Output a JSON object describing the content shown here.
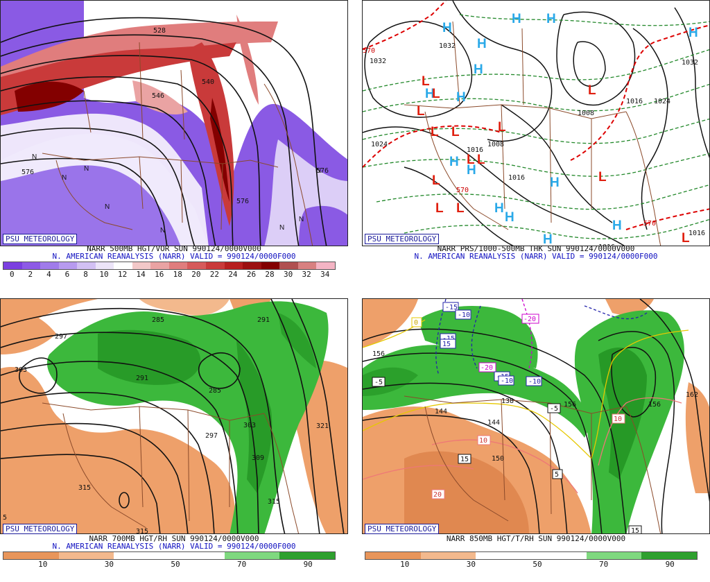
{
  "brand": "PSU METEOROLOGY",
  "panels": [
    {
      "line1": "NARR 500MB HGT/VOR SUN 990124/0000V000",
      "line2": "N. AMERICAN REANALYSIS (NARR) VALID = 990124/0000F000",
      "colorbar": {
        "ticks": [
          "0",
          "2",
          "4",
          "6",
          "8",
          "10",
          "12",
          "14",
          "16",
          "18",
          "20",
          "22",
          "24",
          "26",
          "28",
          "30",
          "32",
          "34"
        ],
        "colors": [
          "#7b3fe0",
          "#8d5ae6",
          "#a07bea",
          "#b79aef",
          "#d2c0f3",
          "#ece4f8",
          "#ffffff",
          "#f2c8c8",
          "#eaa3a3",
          "#e07d7d",
          "#d65a5a",
          "#c93a3a",
          "#b71f1f",
          "#9c1010",
          "#830000",
          "#b05050",
          "#d88080",
          "#f4b4c4"
        ]
      },
      "contour_labels": [
        "528",
        "546",
        "576",
        "576",
        "576",
        "540",
        "549",
        "570"
      ]
    },
    {
      "line1": "NARR PRS/1000-500MB THK SUN 990124/0000V000",
      "line2": "N. AMERICAN REANALYSIS (NARR) VALID = 990124/0000F000",
      "high_symbol": "H",
      "low_symbol": "L",
      "contour_labels": [
        "1032",
        "1024",
        "1032",
        "1008",
        "1016",
        "1024",
        "1016",
        "1008",
        "1016",
        "1032",
        "1016",
        "1016",
        "570",
        "570",
        "570"
      ]
    },
    {
      "line1": "NARR 700MB HGT/RH SUN 990124/0000V000",
      "line2": "N. AMERICAN REANALYSIS (NARR) VALID = 990124/0000F000",
      "colorbar": {
        "ticks": [
          "10",
          "30",
          "50",
          "70",
          "90"
        ],
        "colors": [
          "#e8955a",
          "#f3b98d",
          "#ffffff",
          "#ffffff",
          "#7fd97f",
          "#2ea02e"
        ]
      },
      "contour_labels": [
        "297",
        "303",
        "291",
        "285",
        "285",
        "291",
        "297",
        "303",
        "309",
        "315",
        "321",
        "315",
        "315",
        "285",
        "5"
      ]
    },
    {
      "line1": "NARR 850MB HGT/T/RH SUN 990124/0000V000",
      "line2": "",
      "colorbar": {
        "ticks": [
          "10",
          "30",
          "50",
          "70",
          "90"
        ],
        "colors": [
          "#e8955a",
          "#f3b98d",
          "#ffffff",
          "#ffffff",
          "#7fd97f",
          "#2ea02e"
        ]
      },
      "contour_labels": [
        "156",
        "144",
        "138",
        "144",
        "150",
        "156",
        "162",
        "156",
        "0"
      ],
      "temp_boxes": [
        "-15",
        "-10",
        "-15",
        "-20",
        "-20",
        "-15",
        "-10",
        "-10",
        "-5",
        "-5",
        "0",
        "5",
        "10",
        "15",
        "15",
        "20",
        "10",
        "15"
      ]
    }
  ],
  "colors": {
    "brand": "#1a1a9a",
    "title2": "#1010c0",
    "high": "#2aa9e8",
    "low": "#e02010",
    "thickness": "#cc0000",
    "thickness_green": "#22882a",
    "border": "#8b4a2a"
  }
}
